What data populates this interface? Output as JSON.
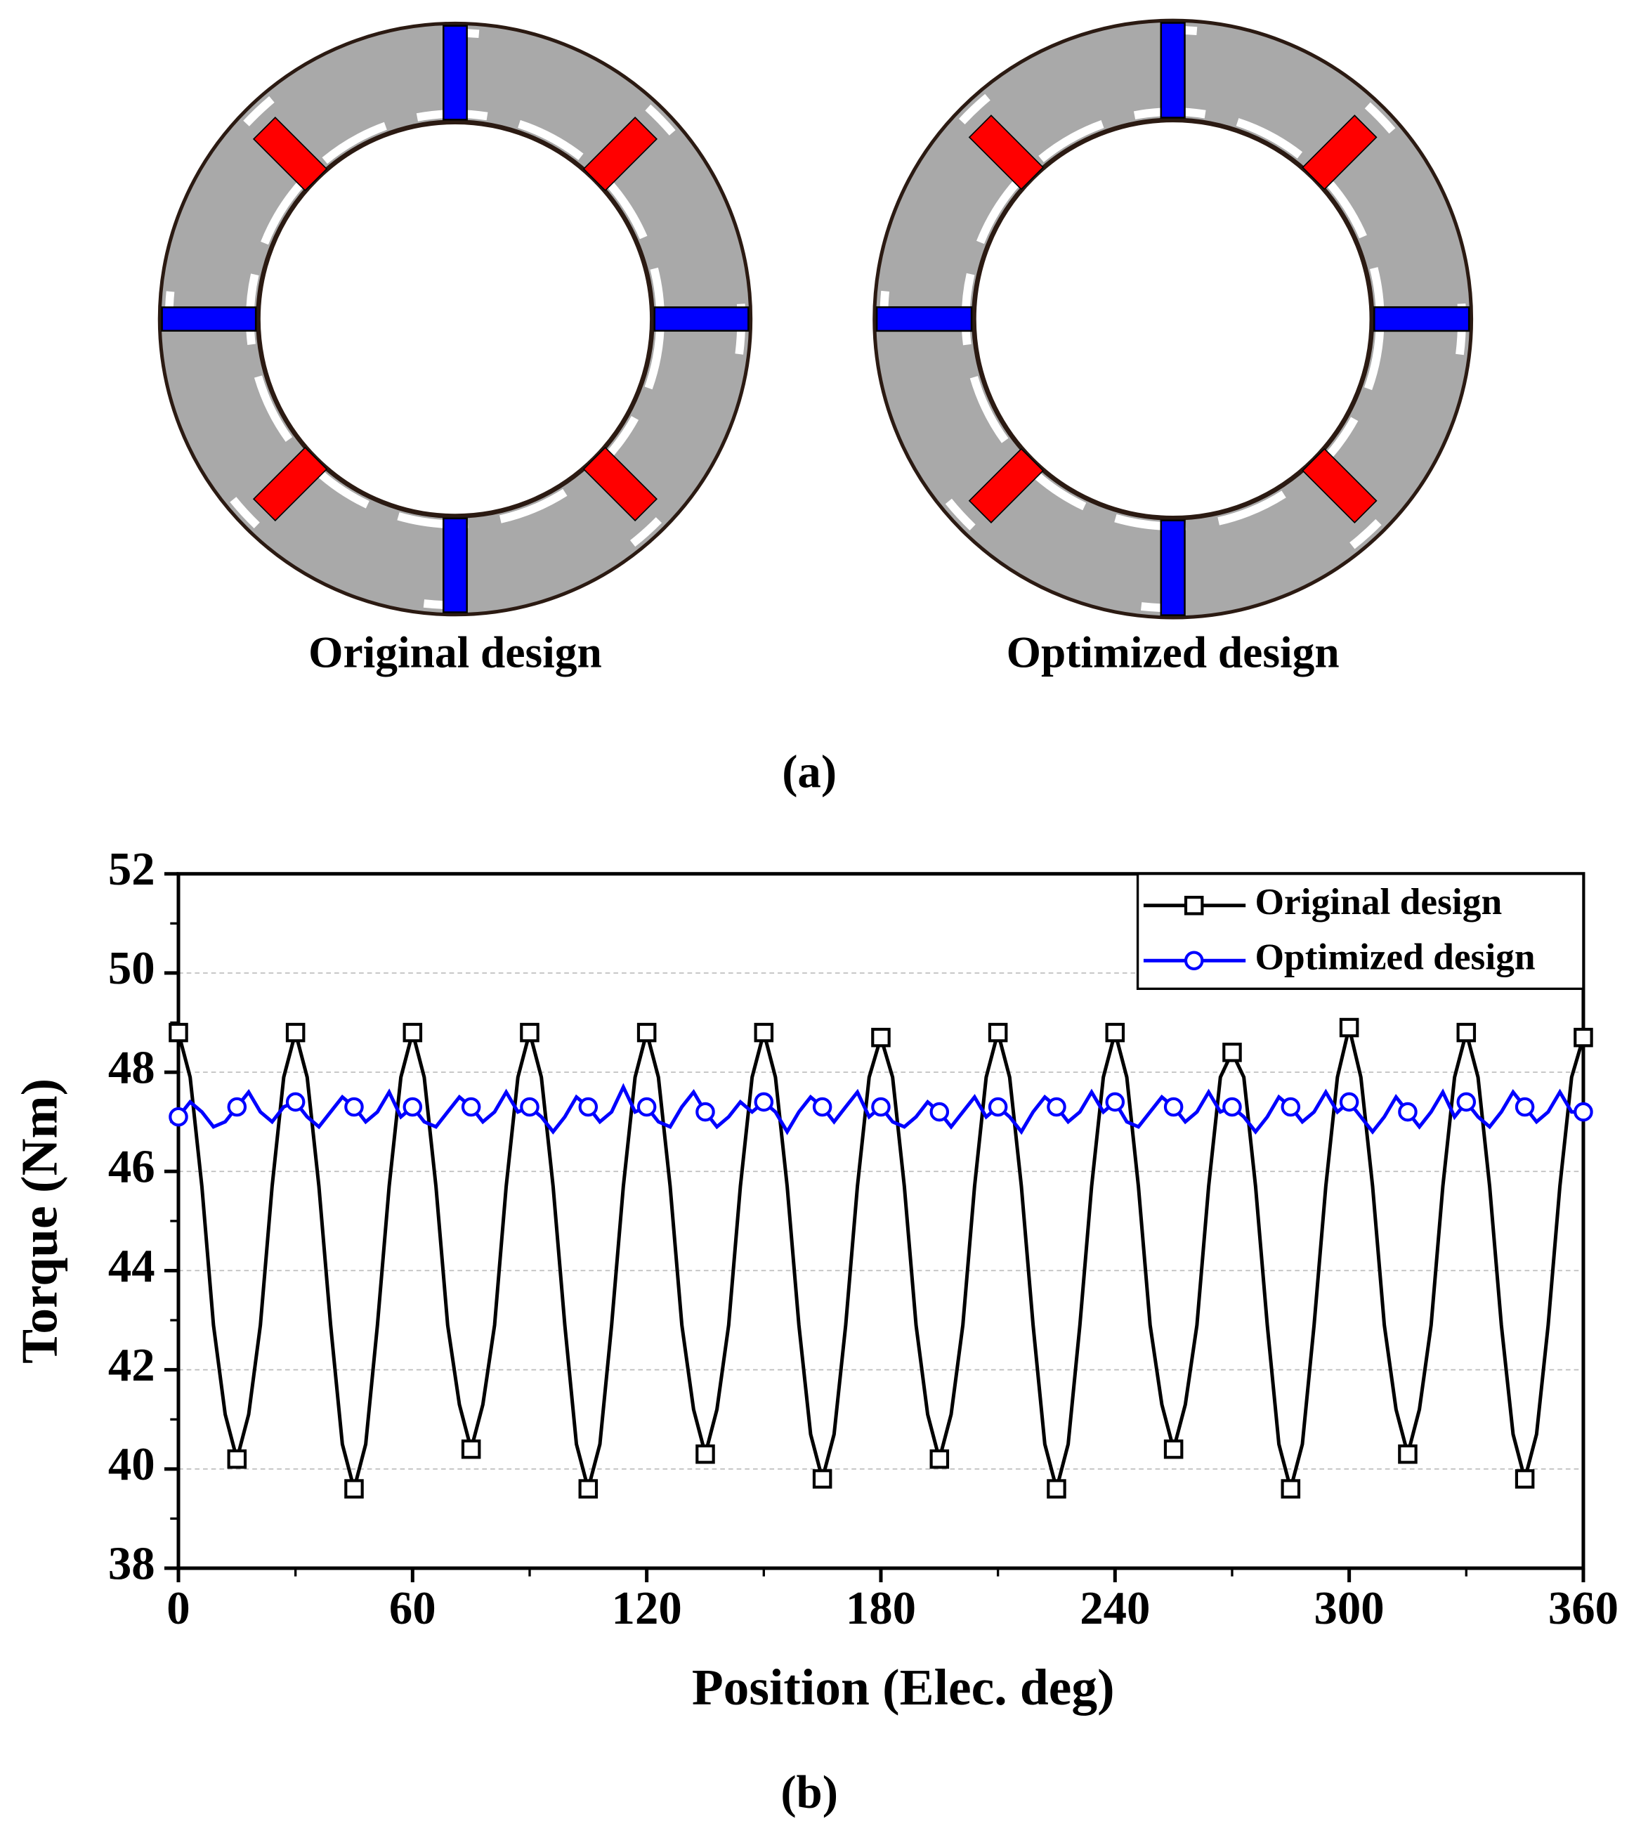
{
  "diagram": {
    "labels": [
      "Original design",
      "Optimized design"
    ],
    "caption": "(a)"
  },
  "chart_data": {
    "type": "line",
    "caption": "(b)",
    "xlabel": "Position (Elec. deg)",
    "ylabel": "Torque (Nm)",
    "xlim": [
      0,
      360
    ],
    "xticks": [
      0,
      60,
      120,
      180,
      240,
      300,
      360
    ],
    "ylim": [
      38,
      52
    ],
    "yticks": [
      38,
      40,
      42,
      44,
      46,
      48,
      50,
      52
    ],
    "grid": true,
    "legend": "upper right",
    "x": [
      0,
      3,
      6,
      9,
      12,
      15,
      18,
      21,
      24,
      27,
      30,
      33,
      36,
      39,
      42,
      45,
      48,
      51,
      54,
      57,
      60,
      63,
      66,
      69,
      72,
      75,
      78,
      81,
      84,
      87,
      90,
      93,
      96,
      99,
      102,
      105,
      108,
      111,
      114,
      117,
      120,
      123,
      126,
      129,
      132,
      135,
      138,
      141,
      144,
      147,
      150,
      153,
      156,
      159,
      162,
      165,
      168,
      171,
      174,
      177,
      180,
      183,
      186,
      189,
      192,
      195,
      198,
      201,
      204,
      207,
      210,
      213,
      216,
      219,
      222,
      225,
      228,
      231,
      234,
      237,
      240,
      243,
      246,
      249,
      252,
      255,
      258,
      261,
      264,
      267,
      270,
      273,
      276,
      279,
      282,
      285,
      288,
      291,
      294,
      297,
      300,
      303,
      306,
      309,
      312,
      315,
      318,
      321,
      324,
      327,
      330,
      333,
      336,
      339,
      342,
      345,
      348,
      351,
      354,
      357,
      360
    ],
    "series": [
      {
        "name": "Original design",
        "color": "#000000",
        "marker": "square",
        "values": [
          48.8,
          47.9,
          45.7,
          42.9,
          41.1,
          40.2,
          41.1,
          42.9,
          45.7,
          47.9,
          48.8,
          47.9,
          45.7,
          42.9,
          40.5,
          39.6,
          40.5,
          42.9,
          45.7,
          47.9,
          48.8,
          47.9,
          45.7,
          42.9,
          41.3,
          40.4,
          41.3,
          42.9,
          45.7,
          47.9,
          48.8,
          47.9,
          45.7,
          42.9,
          40.5,
          39.6,
          40.5,
          42.9,
          45.7,
          47.9,
          48.8,
          47.9,
          45.7,
          42.9,
          41.2,
          40.3,
          41.2,
          42.9,
          45.7,
          47.9,
          48.8,
          47.9,
          45.7,
          42.9,
          40.7,
          39.8,
          40.7,
          42.9,
          45.7,
          47.9,
          48.7,
          47.9,
          45.7,
          42.9,
          41.1,
          40.2,
          41.1,
          42.9,
          45.7,
          47.9,
          48.8,
          47.9,
          45.7,
          42.9,
          40.5,
          39.6,
          40.5,
          42.9,
          45.7,
          47.9,
          48.8,
          47.9,
          45.7,
          42.9,
          41.3,
          40.4,
          41.3,
          42.9,
          45.7,
          47.9,
          48.4,
          47.9,
          45.7,
          42.9,
          40.5,
          39.6,
          40.5,
          42.9,
          45.7,
          47.9,
          48.9,
          47.9,
          45.7,
          42.9,
          41.2,
          40.3,
          41.2,
          42.9,
          45.7,
          47.9,
          48.8,
          47.9,
          45.7,
          42.9,
          40.7,
          39.8,
          40.7,
          42.9,
          45.7,
          47.9,
          48.7
        ]
      },
      {
        "name": "Optimized design",
        "color": "#0000ff",
        "marker": "circle",
        "values": [
          47.1,
          47.4,
          47.2,
          46.9,
          47.0,
          47.3,
          47.6,
          47.2,
          47.0,
          47.3,
          47.4,
          47.1,
          46.9,
          47.2,
          47.5,
          47.3,
          47.0,
          47.2,
          47.6,
          47.1,
          47.3,
          47.0,
          46.9,
          47.2,
          47.5,
          47.3,
          47.0,
          47.2,
          47.6,
          47.2,
          47.3,
          47.1,
          46.8,
          47.1,
          47.5,
          47.3,
          47.0,
          47.2,
          47.7,
          47.2,
          47.3,
          47.0,
          46.9,
          47.3,
          47.6,
          47.2,
          46.9,
          47.1,
          47.4,
          47.2,
          47.4,
          47.2,
          46.8,
          47.2,
          47.5,
          47.3,
          47.0,
          47.3,
          47.6,
          47.1,
          47.3,
          47.0,
          46.9,
          47.1,
          47.4,
          47.2,
          46.9,
          47.2,
          47.5,
          47.1,
          47.3,
          47.1,
          46.8,
          47.2,
          47.5,
          47.3,
          47.0,
          47.2,
          47.6,
          47.2,
          47.4,
          47.0,
          46.9,
          47.2,
          47.5,
          47.3,
          47.0,
          47.2,
          47.6,
          47.2,
          47.3,
          47.1,
          46.8,
          47.1,
          47.5,
          47.3,
          47.0,
          47.2,
          47.6,
          47.2,
          47.4,
          47.1,
          46.8,
          47.1,
          47.5,
          47.2,
          46.9,
          47.2,
          47.6,
          47.1,
          47.4,
          47.1,
          46.9,
          47.2,
          47.6,
          47.3,
          47.0,
          47.2,
          47.6,
          47.2,
          47.2
        ]
      }
    ]
  }
}
